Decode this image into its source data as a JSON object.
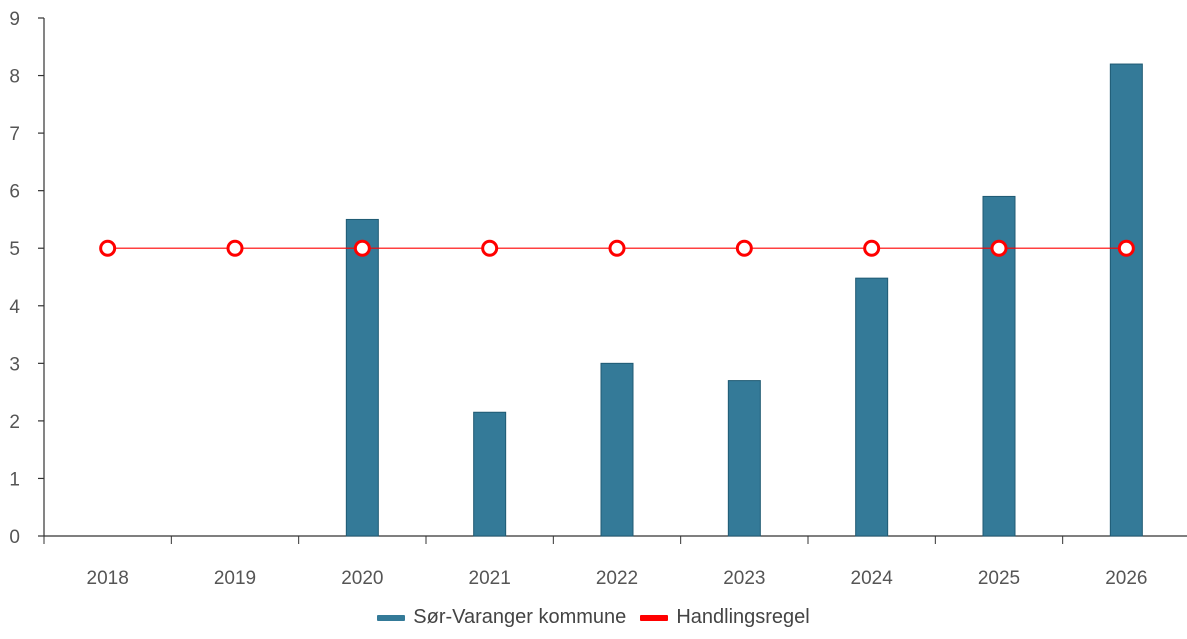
{
  "chart_data": {
    "type": "bar",
    "categories": [
      "2018",
      "2019",
      "2020",
      "2021",
      "2022",
      "2023",
      "2024",
      "2025",
      "2026"
    ],
    "series": [
      {
        "name": "Sør-Varanger kommune",
        "type": "bar",
        "color": "#347A98",
        "values": [
          null,
          null,
          5.5,
          2.15,
          3.0,
          2.7,
          4.48,
          5.9,
          8.2
        ]
      },
      {
        "name": "Handlingsregel",
        "type": "line",
        "color": "#FF0000",
        "values": [
          5,
          5,
          5,
          5,
          5,
          5,
          5,
          5,
          5
        ]
      }
    ],
    "yticks": [
      "0",
      "1",
      "2",
      "3",
      "4",
      "5",
      "6",
      "7",
      "8",
      "9"
    ],
    "ylim": [
      0,
      9
    ],
    "grid": false,
    "legend_position": "bottom"
  }
}
